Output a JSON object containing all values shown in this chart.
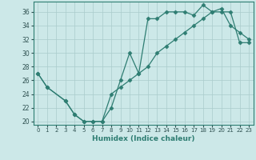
{
  "line1_x": [
    0,
    1,
    3,
    4,
    5,
    6,
    7,
    8,
    9,
    10,
    11,
    12,
    13,
    14,
    15,
    16,
    17,
    18,
    19,
    20,
    21,
    22,
    23
  ],
  "line1_y": [
    27,
    25,
    23,
    21,
    20,
    20,
    20,
    22,
    26,
    30,
    27,
    35,
    35,
    36,
    36,
    36,
    35.5,
    37,
    36,
    36.5,
    34,
    33,
    32
  ],
  "line2_x": [
    0,
    1,
    3,
    4,
    5,
    6,
    7,
    8,
    9,
    10,
    11,
    12,
    13,
    14,
    15,
    16,
    17,
    18,
    19,
    20,
    21,
    22,
    23
  ],
  "line2_y": [
    27,
    25,
    23,
    21,
    20,
    20,
    20,
    24,
    25,
    26,
    27,
    28,
    30,
    31,
    32,
    33,
    34,
    35,
    36,
    36,
    36,
    31.5,
    31.5
  ],
  "line_color": "#2e7d72",
  "bg_color": "#cce8e8",
  "grid_color": "#aacccc",
  "xlabel": "Humidex (Indice chaleur)",
  "xlim": [
    -0.5,
    23.5
  ],
  "ylim": [
    19.5,
    37.5
  ],
  "yticks": [
    20,
    22,
    24,
    26,
    28,
    30,
    32,
    34,
    36
  ],
  "xticks": [
    0,
    1,
    2,
    3,
    4,
    5,
    6,
    7,
    8,
    9,
    10,
    11,
    12,
    13,
    14,
    15,
    16,
    17,
    18,
    19,
    20,
    21,
    22,
    23
  ],
  "marker": "D",
  "markersize": 2.5,
  "linewidth": 0.9
}
